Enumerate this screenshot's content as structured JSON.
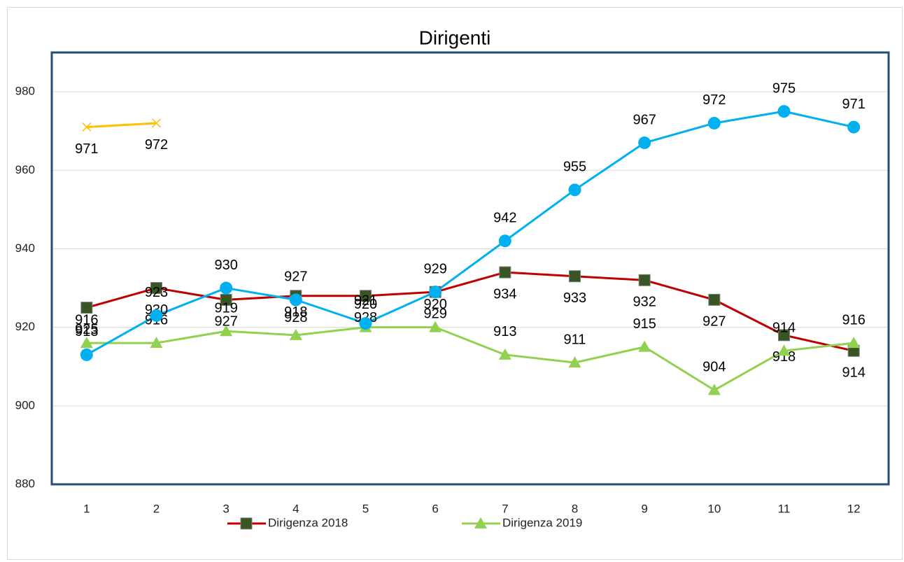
{
  "chart_data": {
    "type": "line",
    "title": "Dirigenti",
    "categories": [
      "1",
      "2",
      "3",
      "4",
      "5",
      "6",
      "7",
      "8",
      "9",
      "10",
      "11",
      "12"
    ],
    "ylim": [
      880,
      990
    ],
    "yticks": [
      880,
      900,
      920,
      940,
      960,
      980
    ],
    "grid": true,
    "series": [
      {
        "name": "Dirigenza 2018",
        "color": "#c00000",
        "marker": "square",
        "marker_color": "#375623",
        "label_position": "below",
        "values": [
          925,
          930,
          927,
          928,
          928,
          929,
          934,
          933,
          932,
          927,
          918,
          914
        ]
      },
      {
        "name": "Dirigenza 2019",
        "color": "#92d050",
        "marker": "triangle",
        "marker_color": "#92d050",
        "label_position": "above",
        "values": [
          916,
          916,
          919,
          918,
          920,
          920,
          913,
          911,
          915,
          904,
          914,
          916
        ]
      },
      {
        "color": "#00b0f0",
        "marker": "circle",
        "marker_color": "#00b0f0",
        "label_position": "above",
        "values": [
          913,
          923,
          930,
          927,
          921,
          929,
          942,
          955,
          967,
          972,
          975,
          971
        ]
      },
      {
        "color": "#ffc000",
        "marker": "x",
        "marker_color": "#ffc000",
        "label_position": "below",
        "values": [
          971,
          972,
          null,
          null,
          null,
          null,
          null,
          null,
          null,
          null,
          null,
          null
        ]
      }
    ]
  }
}
